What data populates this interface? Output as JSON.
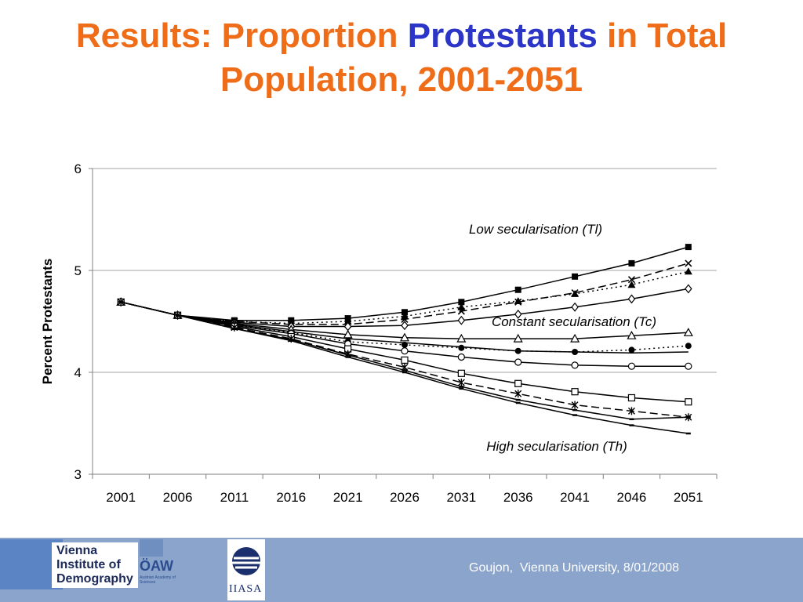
{
  "title": {
    "part1": "Results: Proportion ",
    "highlight": "Protestants",
    "part2": " in Total Population, 2001-2051",
    "color_main": "#ef6d18",
    "color_highlight": "#2b35c8"
  },
  "footer": {
    "credit": "Goujon,  Vienna University, 8/01/2008",
    "logo_vid_lines": [
      "Vienna",
      "Institute of",
      "Demography"
    ],
    "logo_oaw": "ÖAW",
    "logo_oaw_sub": "Austrian Academy of Sciences",
    "logo_iiasa": "IIASA",
    "bg_color": "#8aa4cc"
  },
  "chart_data": {
    "type": "line",
    "ylabel": "Percent Protestants",
    "xlabel": "",
    "ylim": [
      3,
      6
    ],
    "yticks": [
      3,
      4,
      5,
      6
    ],
    "grid": "horizontal",
    "categories": [
      "2001",
      "2006",
      "2011",
      "2016",
      "2021",
      "2026",
      "2031",
      "2036",
      "2041",
      "2046",
      "2051"
    ],
    "annotations": [
      "Low secularisation (Tl)",
      "Constant secularisation (Tc)",
      "High secularisation (Th)"
    ],
    "series": [
      {
        "marker": "square-filled",
        "dash": "solid",
        "values": [
          4.69,
          4.56,
          4.51,
          4.51,
          4.53,
          4.59,
          4.69,
          4.81,
          4.94,
          5.07,
          5.23
        ]
      },
      {
        "marker": "x",
        "dash": "dashed",
        "values": [
          4.69,
          4.56,
          4.5,
          4.47,
          4.47,
          4.52,
          4.6,
          4.69,
          4.78,
          4.91,
          5.07
        ]
      },
      {
        "marker": "triangle-filled",
        "dash": "dotted",
        "values": [
          4.69,
          4.56,
          4.5,
          4.48,
          4.5,
          4.55,
          4.64,
          4.7,
          4.77,
          4.86,
          4.99
        ]
      },
      {
        "marker": "diamond-open",
        "dash": "solid",
        "values": [
          4.69,
          4.56,
          4.49,
          4.45,
          4.45,
          4.46,
          4.51,
          4.57,
          4.64,
          4.72,
          4.82
        ]
      },
      {
        "marker": "triangle-open",
        "dash": "solid",
        "values": [
          4.69,
          4.56,
          4.48,
          4.42,
          4.37,
          4.34,
          4.33,
          4.33,
          4.33,
          4.36,
          4.39
        ]
      },
      {
        "marker": "circle-filled",
        "dash": "dotted",
        "values": [
          4.69,
          4.56,
          4.47,
          4.39,
          4.3,
          4.27,
          4.24,
          4.21,
          4.2,
          4.22,
          4.26
        ]
      },
      {
        "marker": "none",
        "dash": "solid",
        "values": [
          4.69,
          4.56,
          4.47,
          4.4,
          4.33,
          4.29,
          4.25,
          4.21,
          4.2,
          4.19,
          4.2
        ]
      },
      {
        "marker": "circle-open",
        "dash": "solid",
        "values": [
          4.69,
          4.56,
          4.46,
          4.38,
          4.28,
          4.21,
          4.15,
          4.1,
          4.07,
          4.06,
          4.06
        ]
      },
      {
        "marker": "square-open",
        "dash": "solid",
        "values": [
          4.69,
          4.56,
          4.45,
          4.35,
          4.23,
          4.12,
          3.99,
          3.89,
          3.81,
          3.75,
          3.71
        ]
      },
      {
        "marker": "asterisk",
        "dash": "dashed",
        "values": [
          4.69,
          4.56,
          4.44,
          4.33,
          4.18,
          4.05,
          3.9,
          3.79,
          3.68,
          3.62,
          3.56
        ]
      },
      {
        "marker": "dash",
        "dash": "solid",
        "values": [
          4.69,
          4.56,
          4.43,
          4.32,
          4.17,
          4.02,
          3.86,
          3.73,
          3.63,
          3.54,
          3.56
        ]
      },
      {
        "marker": "dash",
        "dash": "solid",
        "values": [
          4.69,
          4.56,
          4.43,
          4.31,
          4.15,
          4.0,
          3.84,
          3.7,
          3.58,
          3.48,
          3.4
        ]
      }
    ]
  }
}
